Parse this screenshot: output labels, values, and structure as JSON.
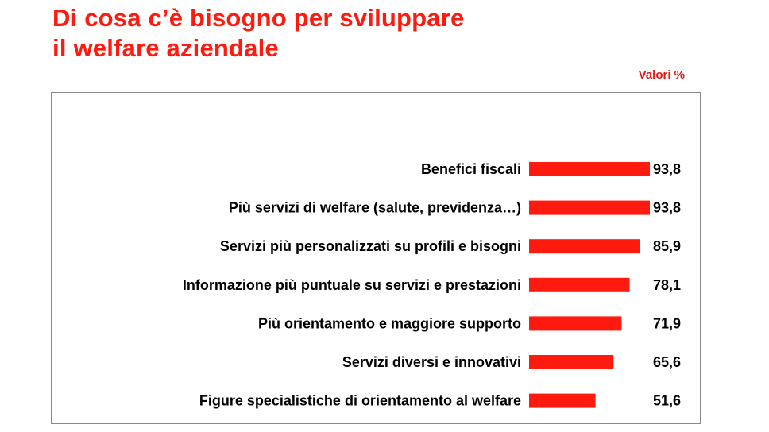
{
  "title_line1": "Di cosa c’è bisogno per sviluppare",
  "title_line2": "il welfare aziendale",
  "units_label": "Valori %",
  "colors": {
    "title": "#ff1a0f",
    "bar": "#ff1a0f",
    "units": "#e41612",
    "label": "#000000"
  },
  "chart_data": {
    "type": "bar",
    "orientation": "horizontal",
    "categories": [
      "Benefici fiscali",
      "Più servizi di welfare (salute, previdenza…)",
      "Servizi più personalizzati su profili e bisogni",
      "Informazione più puntuale su servizi e prestazioni",
      "Più orientamento e maggiore supporto",
      "Servizi diversi e innovativi",
      "Figure specialistiche di orientamento al welfare"
    ],
    "values": [
      93.8,
      93.8,
      85.9,
      78.1,
      71.9,
      65.6,
      51.6
    ],
    "value_labels": [
      "93,8",
      "93,8",
      "85,9",
      "78,1",
      "71,9",
      "65,6",
      "51,6"
    ],
    "title": "Di cosa c’è bisogno per sviluppare il welfare aziendale",
    "unit": "Valori %",
    "xlim": [
      0,
      100
    ],
    "grid": false,
    "legend": "none"
  }
}
